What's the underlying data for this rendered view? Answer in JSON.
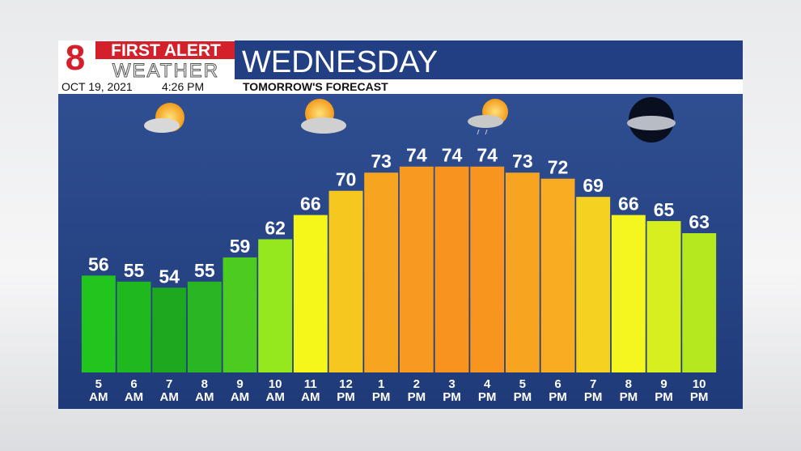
{
  "chart_data": {
    "type": "bar",
    "brand_number": "8",
    "brand_top": "FIRST ALERT",
    "brand_bottom": "WEATHER",
    "title": "WEDNESDAY",
    "date": "OCT 19, 2021",
    "time": "4:26 PM",
    "subtitle": "TOMORROW'S FORECAST",
    "categories": [
      "5 AM",
      "6 AM",
      "7 AM",
      "8 AM",
      "9 AM",
      "10 AM",
      "11 AM",
      "12 PM",
      "1 PM",
      "2 PM",
      "3 PM",
      "4 PM",
      "5 PM",
      "6 PM",
      "7 PM",
      "8 PM",
      "9 PM",
      "10 PM"
    ],
    "values": [
      56,
      55,
      54,
      55,
      59,
      62,
      66,
      70,
      73,
      74,
      74,
      74,
      73,
      72,
      69,
      66,
      65,
      63
    ],
    "colors": [
      "#22c41e",
      "#1fb81f",
      "#1ea820",
      "#2ab522",
      "#4ccc20",
      "#95e81e",
      "#f5f71a",
      "#f5c71f",
      "#f7a520",
      "#f79a1f",
      "#f7931e",
      "#f7951e",
      "#f7a420",
      "#f7ac22",
      "#f5d21f",
      "#f5f520",
      "#d6ef1f",
      "#b5e81e"
    ],
    "ylim": [
      40,
      86
    ]
  }
}
